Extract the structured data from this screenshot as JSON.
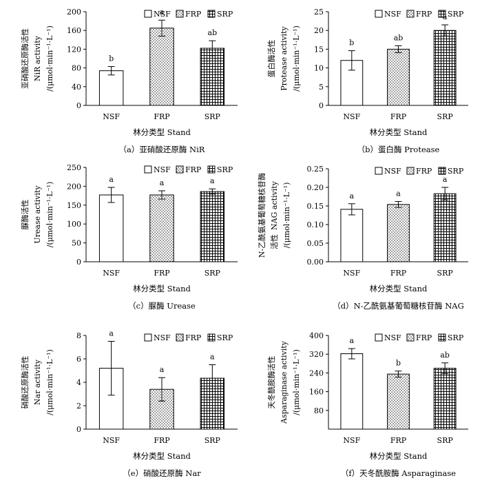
{
  "figure": {
    "title": "Soil enzyme activities by stand type"
  },
  "colors": {
    "axis": "#000000",
    "bar_fill": "#ffffff",
    "pattern_ink": "#000000"
  },
  "chart_data": [
    {
      "type": "bar",
      "id": "a",
      "ylabel_zh": "亚硝酸还原酶活性",
      "ylabel_en": "NiR activity",
      "yunit": "/(μmol·min⁻¹·L⁻¹)",
      "xlabel": "林分类型 Stand",
      "caption": "（a）亚硝酸还原酶 NiR",
      "categories": [
        "NSF",
        "FRP",
        "SRP"
      ],
      "values": [
        74,
        165,
        122
      ],
      "errors": [
        9,
        17,
        16
      ],
      "sig_letters": [
        "b",
        "a",
        "ab"
      ],
      "ylim": [
        0,
        200
      ],
      "yticks": [
        "0",
        "40",
        "80",
        "120",
        "160",
        "200"
      ],
      "legend": [
        "NSF",
        "FRP",
        "SRP"
      ]
    },
    {
      "type": "bar",
      "id": "b",
      "ylabel_zh": "蛋白酶活性",
      "ylabel_en": "Protease activity",
      "yunit": "/(μmol·min⁻¹·L⁻¹)",
      "xlabel": "林分类型 Stand",
      "caption": "（b）蛋白酶 Protease",
      "categories": [
        "NSF",
        "FRP",
        "SRP"
      ],
      "values": [
        12,
        15,
        20
      ],
      "errors": [
        2.6,
        0.9,
        1.5
      ],
      "sig_letters": [
        "b",
        "ab",
        "a"
      ],
      "ylim": [
        0,
        25
      ],
      "yticks": [
        "0",
        "5",
        "10",
        "15",
        "20",
        "25"
      ],
      "legend": [
        "NSF",
        "FRP",
        "SRP"
      ]
    },
    {
      "type": "bar",
      "id": "c",
      "ylabel_zh": "脲酶活性",
      "ylabel_en": "Urease activity",
      "yunit": "/(μmol·min⁻¹·L⁻¹)",
      "xlabel": "林分类型 Stand",
      "caption": "（c）脲酶 Urease",
      "categories": [
        "NSF",
        "FRP",
        "SRP"
      ],
      "values": [
        177,
        177,
        186
      ],
      "errors": [
        20,
        11,
        7
      ],
      "sig_letters": [
        "a",
        "a",
        "a"
      ],
      "ylim": [
        0,
        250
      ],
      "yticks": [
        "0",
        "50",
        "100",
        "150",
        "200",
        "250"
      ],
      "legend": [
        "NSF",
        "FRP",
        "SRP"
      ]
    },
    {
      "type": "bar",
      "id": "d",
      "ylabel_zh": "N-乙酰氨基葡萄糖核苷酶",
      "ylabel_zh2": "活性",
      "ylabel_en": "NAG activity",
      "yunit": "/(μmol·min⁻¹·L⁻¹)",
      "xlabel": "林分类型 Stand",
      "caption": "（d）N-乙酰氨基葡萄糖核苷酶 NAG",
      "categories": [
        "NSF",
        "FRP",
        "SRP"
      ],
      "values": [
        0.141,
        0.154,
        0.183
      ],
      "errors": [
        0.015,
        0.008,
        0.017
      ],
      "sig_letters": [
        "a",
        "a",
        "a"
      ],
      "ylim": [
        0,
        0.25
      ],
      "yticks": [
        "0.00",
        "0.05",
        "0.10",
        "0.15",
        "0.20",
        "0.25"
      ],
      "legend": [
        "NSF",
        "FRP",
        "SRP"
      ]
    },
    {
      "type": "bar",
      "id": "e",
      "ylabel_zh": "硝酸还原酶活性",
      "ylabel_en": "Nar activity",
      "yunit": "/(μmol·min⁻¹·L⁻¹)",
      "xlabel": "林分类型 Stand",
      "caption": "（e）硝酸还原酶 Nar",
      "categories": [
        "NSF",
        "FRP",
        "SRP"
      ],
      "values": [
        5.2,
        3.4,
        4.35
      ],
      "errors": [
        2.3,
        1.0,
        1.15
      ],
      "sig_letters": [
        "a",
        "a",
        "a"
      ],
      "ylim": [
        0,
        8
      ],
      "yticks": [
        "0",
        "2",
        "4",
        "6",
        "8"
      ],
      "legend": [
        "NSF",
        "FRP",
        "SRP"
      ]
    },
    {
      "type": "bar",
      "id": "f",
      "ylabel_zh": "天冬酰胺酶活性",
      "ylabel_en": "Asparaginase activity",
      "yunit": "/(μmol·min⁻¹·L⁻¹)",
      "xlabel": "林分类型 Stand",
      "caption": "（f）天冬酰胺酶 Asparaginase",
      "categories": [
        "NSF",
        "FRP",
        "SRP"
      ],
      "values": [
        322,
        235,
        260
      ],
      "errors": [
        22,
        13,
        23
      ],
      "sig_letters": [
        "a",
        "b",
        "ab"
      ],
      "ylim": [
        0,
        400
      ],
      "yticks": [
        "80",
        "160",
        "240",
        "320",
        "400"
      ],
      "yticks_values": [
        80,
        160,
        240,
        320,
        400
      ],
      "legend": [
        "NSF",
        "FRP",
        "SRP"
      ]
    }
  ]
}
